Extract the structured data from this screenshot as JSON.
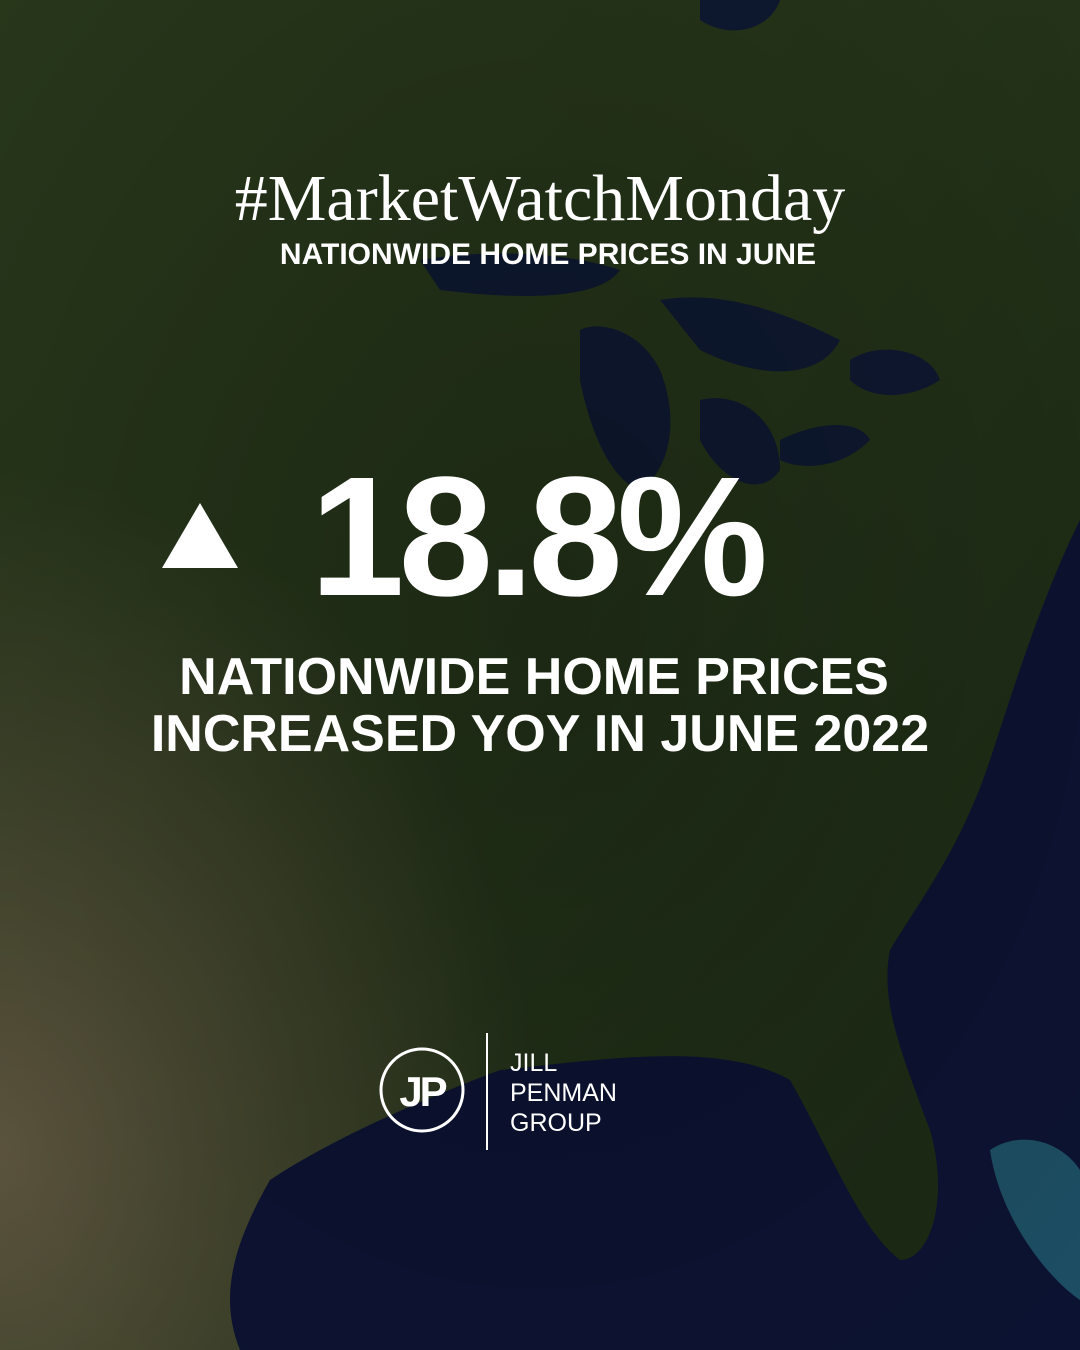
{
  "header": {
    "hashtag": "#MarketWatchMonday",
    "subtitle": "NATIONWIDE HOME PRICES IN JUNE"
  },
  "stat": {
    "value": "18.8%",
    "caption": [
      "NATIONWIDE HOME PRICES",
      "INCREASED YOY IN JUNE 2022"
    ]
  },
  "logo": {
    "monogram": "JP",
    "name": [
      "JILL",
      "PENMAN",
      "GROUP"
    ]
  }
}
